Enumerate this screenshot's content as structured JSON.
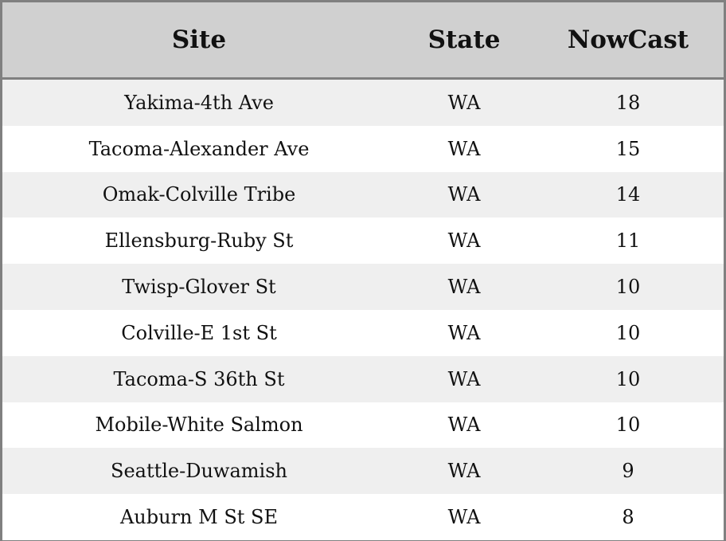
{
  "table": {
    "headers": [
      "Site",
      "State",
      "NowCast"
    ],
    "rows": [
      [
        "Yakima-4th Ave",
        "WA",
        "18"
      ],
      [
        "Tacoma-Alexander Ave",
        "WA",
        "15"
      ],
      [
        "Omak-Colville Tribe",
        "WA",
        "14"
      ],
      [
        "Ellensburg-Ruby St",
        "WA",
        "11"
      ],
      [
        "Twisp-Glover St",
        "WA",
        "10"
      ],
      [
        "Colville-E 1st St",
        "WA",
        "10"
      ],
      [
        "Tacoma-S 36th St",
        "WA",
        "10"
      ],
      [
        "Mobile-White Salmon",
        "WA",
        "10"
      ],
      [
        "Seattle-Duwamish",
        "WA",
        "9"
      ],
      [
        "Auburn M St SE",
        "WA",
        "8"
      ]
    ]
  }
}
